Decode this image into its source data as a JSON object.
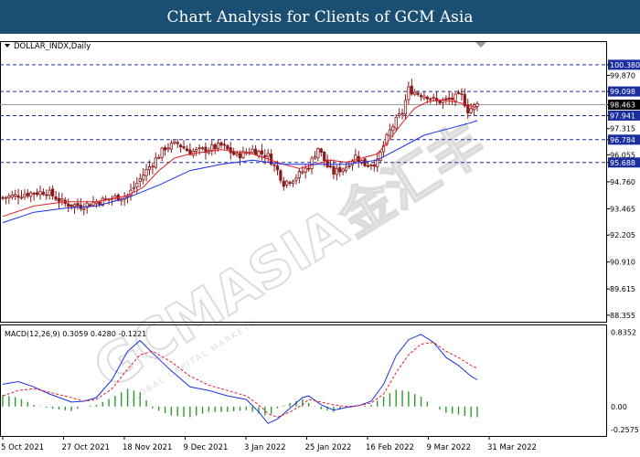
{
  "header": {
    "title": "Chart Analysis for Clients of GCM Asia"
  },
  "watermark": {
    "brand": "GCMASIA",
    "cjk": "金汇丰",
    "tagline": "GLOBAL CAPITAL MARKETS"
  },
  "colors": {
    "title_bg": "#1a4f73",
    "candle": "#8b1a1a",
    "ma_fast": "#e0202a",
    "ma_slow": "#1a2ee8",
    "macd_line": "#1a2ee8",
    "macd_signal": "#e0202a",
    "histogram": "#2e9a2e",
    "level_line": "#1a2ea0",
    "price_label_bg": "#1a2ea0"
  },
  "chart_data": [
    {
      "type": "candlestick",
      "title": "DOLLAR_INDX,Daily",
      "ylim": [
        88.0,
        100.9
      ],
      "y_ticks": [
        "100.380",
        "99.870",
        "99.098",
        "98.463",
        "97.941",
        "97.315",
        "96.784",
        "96.055",
        "95.688",
        "94.760",
        "93.465",
        "92.205",
        "90.910",
        "89.615",
        "88.355"
      ],
      "x_ticks": [
        "5 Oct 2021",
        "27 Oct 2021",
        "18 Nov 2021",
        "9 Dec 2021",
        "3 Jan 2022",
        "25 Jan 2022",
        "16 Feb 2022",
        "9 Mar 2022",
        "31 Mar 2022"
      ],
      "levels": [
        {
          "value": 100.38,
          "label": "100.380"
        },
        {
          "value": 99.098,
          "label": "99.098"
        },
        {
          "value": 97.941,
          "label": "97.941"
        },
        {
          "value": 96.784,
          "label": "96.784"
        },
        {
          "value": 95.688,
          "label": "95.688"
        }
      ],
      "current_price": {
        "value": 98.463,
        "label": "98.463"
      },
      "close_path": [
        [
          0,
          94.0
        ],
        [
          8,
          94.2
        ],
        [
          14,
          94.3
        ],
        [
          20,
          93.7
        ],
        [
          25,
          93.6
        ],
        [
          30,
          93.8
        ],
        [
          36,
          94.0
        ],
        [
          40,
          94.1
        ],
        [
          46,
          95.3
        ],
        [
          52,
          96.4
        ],
        [
          56,
          96.6
        ],
        [
          60,
          96.2
        ],
        [
          65,
          96.3
        ],
        [
          70,
          96.5
        ],
        [
          75,
          96.0
        ],
        [
          80,
          96.3
        ],
        [
          85,
          96.0
        ],
        [
          88,
          95.3
        ],
        [
          90,
          94.7
        ],
        [
          94,
          95.0
        ],
        [
          98,
          95.5
        ],
        [
          101,
          96.4
        ],
        [
          104,
          95.5
        ],
        [
          106,
          95.2
        ],
        [
          110,
          95.5
        ],
        [
          113,
          96.0
        ],
        [
          116,
          95.6
        ],
        [
          120,
          95.7
        ],
        [
          122,
          96.5
        ],
        [
          124,
          97.2
        ],
        [
          126,
          97.7
        ],
        [
          128,
          98.1
        ],
        [
          130,
          99.2
        ],
        [
          133,
          99.0
        ],
        [
          136,
          98.9
        ],
        [
          139,
          98.6
        ],
        [
          143,
          98.7
        ],
        [
          147,
          98.9
        ],
        [
          149,
          98.2
        ],
        [
          152,
          98.46
        ]
      ],
      "series": [
        {
          "name": "",
          "kind": "ma_fast",
          "path": [
            [
              0,
              93.1
            ],
            [
              10,
              93.6
            ],
            [
              20,
              93.8
            ],
            [
              30,
              93.8
            ],
            [
              40,
              94.1
            ],
            [
              45,
              94.5
            ],
            [
              50,
              95.3
            ],
            [
              55,
              95.9
            ],
            [
              60,
              96.1
            ],
            [
              70,
              96.3
            ],
            [
              80,
              96.1
            ],
            [
              90,
              95.6
            ],
            [
              95,
              95.4
            ],
            [
              100,
              95.6
            ],
            [
              105,
              95.8
            ],
            [
              110,
              95.7
            ],
            [
              115,
              95.9
            ],
            [
              120,
              96.1
            ],
            [
              124,
              96.8
            ],
            [
              128,
              97.6
            ],
            [
              132,
              98.3
            ],
            [
              136,
              98.6
            ],
            [
              140,
              98.7
            ],
            [
              145,
              98.6
            ],
            [
              148,
              98.5
            ],
            [
              152,
              98.3
            ]
          ]
        },
        {
          "name": "",
          "kind": "ma_slow",
          "path": [
            [
              0,
              92.8
            ],
            [
              10,
              93.3
            ],
            [
              20,
              93.5
            ],
            [
              30,
              93.6
            ],
            [
              40,
              94.0
            ],
            [
              50,
              94.6
            ],
            [
              60,
              95.3
            ],
            [
              70,
              95.6
            ],
            [
              80,
              95.8
            ],
            [
              90,
              95.6
            ],
            [
              100,
              95.6
            ],
            [
              110,
              95.6
            ],
            [
              115,
              95.7
            ],
            [
              120,
              95.8
            ],
            [
              125,
              96.2
            ],
            [
              130,
              96.6
            ],
            [
              135,
              97.0
            ],
            [
              140,
              97.2
            ],
            [
              145,
              97.4
            ],
            [
              150,
              97.6
            ],
            [
              152,
              97.7
            ]
          ]
        }
      ]
    },
    {
      "type": "line",
      "title": "MACD(12,26,9) 0.3059 0.4280 -0.1221",
      "ylim": [
        -0.33,
        0.9
      ],
      "y_ticks": [
        "0.8352",
        "0.00",
        "-0.2575"
      ],
      "series": [
        {
          "name": "",
          "kind": "macd",
          "path": [
            [
              0,
              0.25
            ],
            [
              5,
              0.28
            ],
            [
              10,
              0.22
            ],
            [
              15,
              0.14
            ],
            [
              22,
              0.05
            ],
            [
              26,
              0.06
            ],
            [
              30,
              0.1
            ],
            [
              35,
              0.3
            ],
            [
              40,
              0.62
            ],
            [
              44,
              0.74
            ],
            [
              48,
              0.6
            ],
            [
              54,
              0.4
            ],
            [
              60,
              0.22
            ],
            [
              66,
              0.18
            ],
            [
              72,
              0.12
            ],
            [
              78,
              0.08
            ],
            [
              82,
              -0.06
            ],
            [
              85,
              -0.19
            ],
            [
              88,
              -0.14
            ],
            [
              92,
              -0.02
            ],
            [
              96,
              0.1
            ],
            [
              98,
              0.12
            ],
            [
              102,
              0.02
            ],
            [
              106,
              -0.04
            ],
            [
              110,
              -0.01
            ],
            [
              114,
              0.01
            ],
            [
              118,
              0.06
            ],
            [
              122,
              0.25
            ],
            [
              126,
              0.57
            ],
            [
              130,
              0.75
            ],
            [
              134,
              0.81
            ],
            [
              138,
              0.72
            ],
            [
              142,
              0.55
            ],
            [
              146,
              0.46
            ],
            [
              150,
              0.34
            ],
            [
              152,
              0.3
            ]
          ]
        },
        {
          "name": "",
          "kind": "signal",
          "path": [
            [
              0,
              0.12
            ],
            [
              5,
              0.18
            ],
            [
              10,
              0.2
            ],
            [
              15,
              0.16
            ],
            [
              22,
              0.1
            ],
            [
              26,
              0.06
            ],
            [
              30,
              0.08
            ],
            [
              35,
              0.2
            ],
            [
              40,
              0.42
            ],
            [
              44,
              0.58
            ],
            [
              48,
              0.62
            ],
            [
              54,
              0.5
            ],
            [
              60,
              0.34
            ],
            [
              66,
              0.24
            ],
            [
              72,
              0.18
            ],
            [
              78,
              0.12
            ],
            [
              82,
              0.02
            ],
            [
              85,
              -0.08
            ],
            [
              88,
              -0.12
            ],
            [
              92,
              -0.06
            ],
            [
              96,
              0.02
            ],
            [
              98,
              0.08
            ],
            [
              102,
              0.05
            ],
            [
              106,
              0.02
            ],
            [
              110,
              0.0
            ],
            [
              114,
              0.01
            ],
            [
              118,
              0.04
            ],
            [
              122,
              0.14
            ],
            [
              126,
              0.38
            ],
            [
              130,
              0.58
            ],
            [
              134,
              0.7
            ],
            [
              138,
              0.72
            ],
            [
              142,
              0.62
            ],
            [
              146,
              0.55
            ],
            [
              150,
              0.46
            ],
            [
              152,
              0.43
            ]
          ]
        },
        {
          "name": "",
          "kind": "histogram",
          "path": [
            [
              0,
              0.13
            ],
            [
              5,
              0.1
            ],
            [
              10,
              0.02
            ],
            [
              15,
              -0.02
            ],
            [
              22,
              -0.05
            ],
            [
              26,
              0.0
            ],
            [
              30,
              0.02
            ],
            [
              35,
              0.1
            ],
            [
              40,
              0.2
            ],
            [
              44,
              0.16
            ],
            [
              48,
              -0.02
            ],
            [
              54,
              -0.1
            ],
            [
              60,
              -0.12
            ],
            [
              66,
              -0.06
            ],
            [
              72,
              -0.06
            ],
            [
              78,
              -0.04
            ],
            [
              82,
              -0.08
            ],
            [
              85,
              -0.11
            ],
            [
              88,
              -0.02
            ],
            [
              92,
              0.04
            ],
            [
              96,
              0.08
            ],
            [
              98,
              0.04
            ],
            [
              102,
              -0.03
            ],
            [
              106,
              -0.06
            ],
            [
              110,
              -0.01
            ],
            [
              114,
              0.0
            ],
            [
              118,
              0.02
            ],
            [
              122,
              0.11
            ],
            [
              126,
              0.19
            ],
            [
              130,
              0.17
            ],
            [
              134,
              0.11
            ],
            [
              138,
              0.0
            ],
            [
              142,
              -0.07
            ],
            [
              146,
              -0.09
            ],
            [
              150,
              -0.12
            ],
            [
              152,
              -0.12
            ]
          ]
        }
      ]
    }
  ]
}
